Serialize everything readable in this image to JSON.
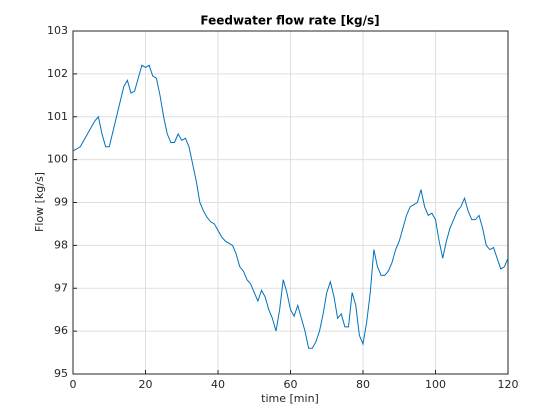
{
  "chart_data": {
    "type": "line",
    "title": "Feedwater flow rate [kg/s]",
    "x_label": "time [min]",
    "y_label": "Flow [kg/s]",
    "x": [
      0,
      2,
      4,
      6,
      7,
      8,
      9,
      10,
      12,
      14,
      15,
      16,
      17,
      18,
      19,
      20,
      21,
      22,
      23,
      24,
      25,
      26,
      27,
      28,
      29,
      30,
      31,
      32,
      33,
      34,
      35,
      36,
      37,
      38,
      39,
      40,
      41,
      42,
      44,
      45,
      46,
      47,
      48,
      49,
      50,
      51,
      52,
      53,
      54,
      55,
      56,
      57,
      58,
      59,
      60,
      61,
      62,
      63,
      64,
      65,
      66,
      67,
      68,
      69,
      70,
      71,
      72,
      73,
      74,
      75,
      76,
      77,
      78,
      79,
      80,
      81,
      82,
      83,
      84,
      85,
      86,
      87,
      88,
      89,
      90,
      91,
      92,
      93,
      94,
      95,
      96,
      97,
      98,
      99,
      100,
      101,
      102,
      103,
      104,
      105,
      106,
      107,
      108,
      109,
      110,
      111,
      112,
      113,
      114,
      115,
      116,
      117,
      118,
      119,
      120
    ],
    "series": [
      {
        "name": "Flow",
        "color": "#0072bd",
        "values": [
          100.2,
          100.3,
          100.6,
          100.9,
          101.0,
          100.6,
          100.3,
          100.3,
          101.0,
          101.7,
          101.85,
          101.55,
          101.6,
          101.9,
          102.2,
          102.15,
          102.2,
          101.95,
          101.9,
          101.5,
          101.0,
          100.6,
          100.4,
          100.4,
          100.6,
          100.45,
          100.5,
          100.3,
          99.9,
          99.5,
          99.0,
          98.8,
          98.65,
          98.55,
          98.5,
          98.35,
          98.2,
          98.1,
          98.0,
          97.8,
          97.5,
          97.4,
          97.2,
          97.1,
          96.9,
          96.7,
          96.95,
          96.8,
          96.5,
          96.3,
          96.0,
          96.5,
          97.2,
          96.9,
          96.5,
          96.35,
          96.6,
          96.3,
          96.0,
          95.6,
          95.6,
          95.75,
          96.0,
          96.4,
          96.9,
          97.15,
          96.8,
          96.3,
          96.4,
          96.1,
          96.1,
          96.9,
          96.6,
          95.9,
          95.7,
          96.2,
          96.9,
          97.9,
          97.5,
          97.3,
          97.3,
          97.4,
          97.6,
          97.9,
          98.1,
          98.4,
          98.7,
          98.9,
          98.95,
          99.0,
          99.3,
          98.9,
          98.7,
          98.75,
          98.6,
          98.1,
          97.7,
          98.1,
          98.4,
          98.6,
          98.8,
          98.9,
          99.1,
          98.8,
          98.6,
          98.6,
          98.7,
          98.4,
          98.0,
          97.9,
          97.95,
          97.7,
          97.45,
          97.5,
          97.7
        ]
      }
    ],
    "xlim": [
      0,
      120
    ],
    "xticks": [
      0,
      20,
      40,
      60,
      80,
      100,
      120
    ],
    "ylim": [
      95,
      103
    ],
    "yticks": [
      95,
      96,
      97,
      98,
      99,
      100,
      101,
      102,
      103
    ],
    "grid": true
  }
}
